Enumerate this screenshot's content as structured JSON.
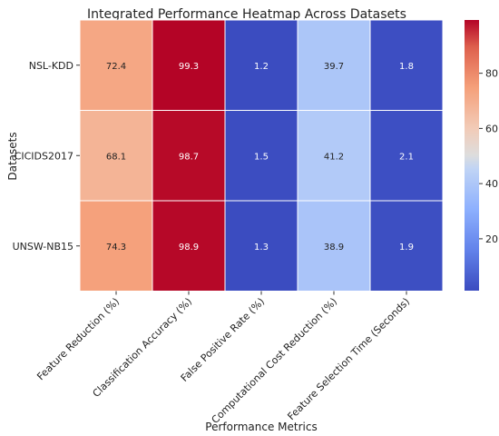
{
  "chart_data": {
    "type": "heatmap",
    "title": "Integrated Performance Heatmap Across Datasets",
    "xlabel": "Performance Metrics",
    "ylabel": "Datasets",
    "columns": [
      "Feature Reduction (%)",
      "Classification Accuracy (%)",
      "False Positive Rate (%)",
      "Computational Cost Reduction (%)",
      "Feature Selection Time (Seconds)"
    ],
    "rows": [
      "NSL-KDD",
      "CICIDS2017",
      "UNSW-NB15"
    ],
    "values": [
      [
        72.4,
        99.3,
        1.2,
        39.7,
        1.8
      ],
      [
        68.1,
        98.7,
        1.5,
        41.2,
        2.1
      ],
      [
        74.3,
        98.9,
        1.3,
        38.9,
        1.9
      ]
    ],
    "value_labels": [
      [
        "72.4",
        "99.3",
        "1.2",
        "39.7",
        "1.8"
      ],
      [
        "68.1",
        "98.7",
        "1.5",
        "41.2",
        "2.1"
      ],
      [
        "74.3",
        "98.9",
        "1.3",
        "38.9",
        "1.9"
      ]
    ],
    "colormap": "coolwarm",
    "color_range": [
      1.2,
      99.3
    ],
    "colorbar_ticks": [
      20,
      40,
      60,
      80
    ],
    "colorbar_tick_labels": [
      "20",
      "40",
      "60",
      "80"
    ]
  }
}
